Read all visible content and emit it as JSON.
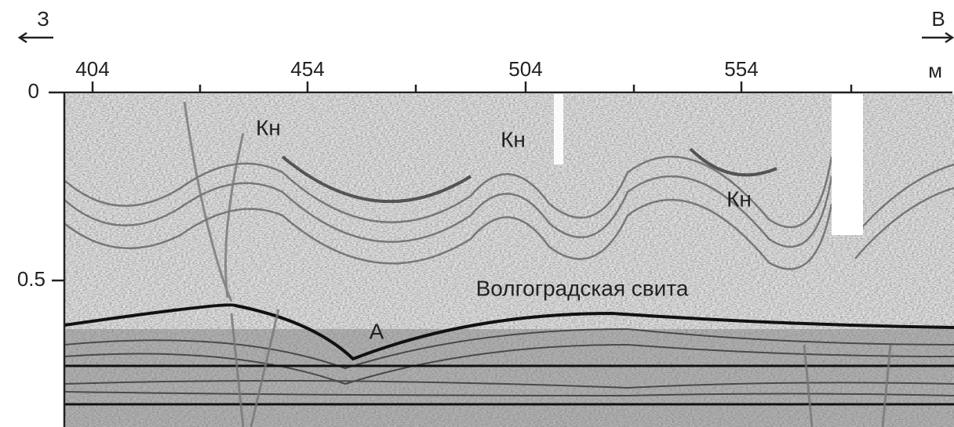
{
  "direction": {
    "west": "З",
    "east": "В"
  },
  "x_axis": {
    "ticks": [
      "404",
      "454",
      "504",
      "554"
    ],
    "unit": "м"
  },
  "y_axis": {
    "ticks": [
      "0",
      "0.5"
    ]
  },
  "labels": {
    "kn_1": "Кн",
    "kn_2": "Кн",
    "kn_3": "Кн",
    "formation": "Волгоградская свита",
    "horizon": "A"
  }
}
